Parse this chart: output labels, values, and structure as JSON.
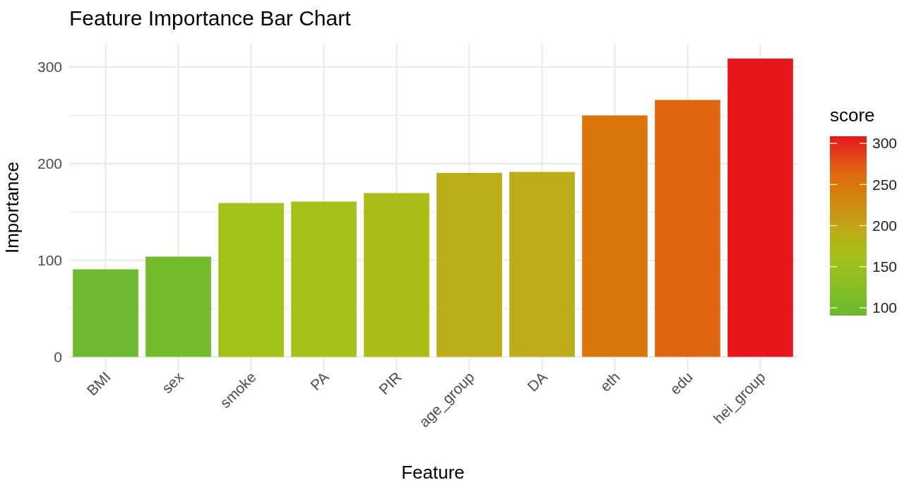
{
  "chart_data": {
    "type": "bar",
    "title": "Feature Importance Bar Chart",
    "xlabel": "Feature",
    "ylabel": "Importance",
    "clabel": "score",
    "categories": [
      "BMI",
      "sex",
      "smoke",
      "PA",
      "PIR",
      "age_group",
      "DA",
      "eth",
      "edu",
      "hei_group"
    ],
    "values": [
      90.6,
      103.7,
      159.2,
      160.7,
      169.5,
      190.4,
      191.4,
      249.8,
      265.9,
      308.7
    ],
    "colors": [
      "#6db92f",
      "#74bb2c",
      "#a2c21b",
      "#a4c21b",
      "#abbc18",
      "#bbad17",
      "#bdad19",
      "#db760b",
      "#e06712",
      "#e7171c"
    ],
    "ylim": [
      -15,
      324
    ],
    "yticks": [
      0,
      100,
      200,
      300
    ],
    "grid": true,
    "clim": [
      90.6,
      308.7
    ],
    "cticks": [
      100,
      150,
      200,
      250,
      300
    ]
  }
}
